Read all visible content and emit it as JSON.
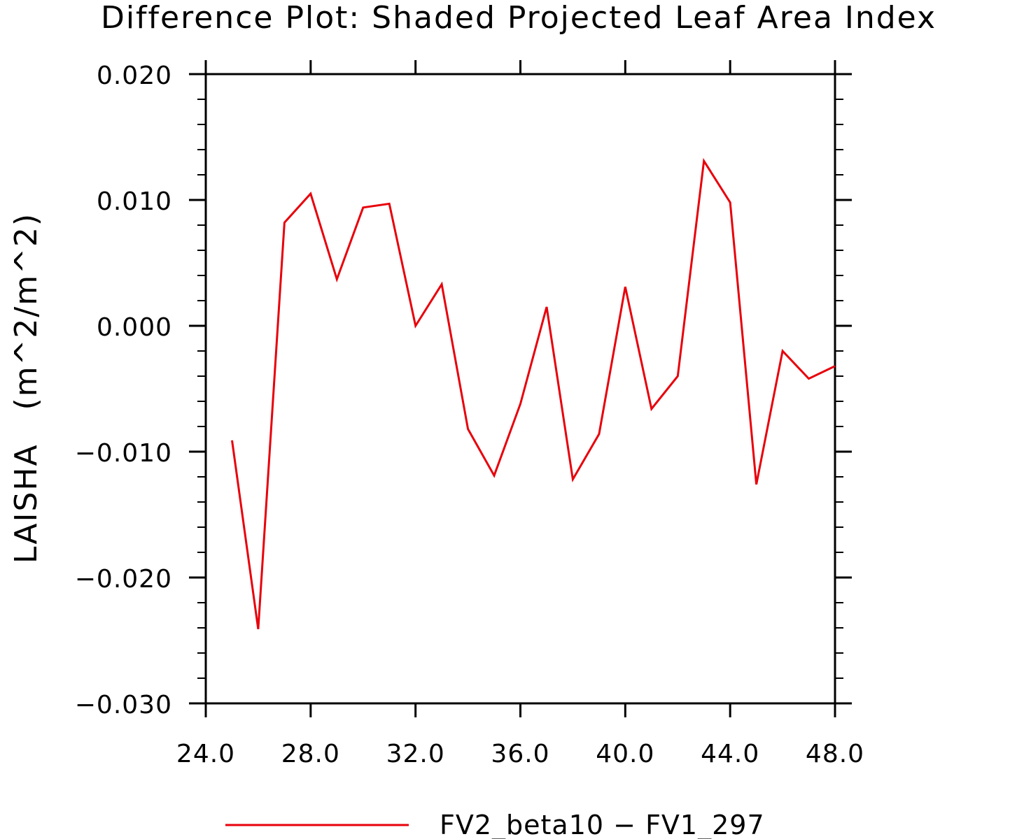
{
  "chart_data": {
    "type": "line",
    "title": "Difference Plot: Shaded Projected Leaf Area Index",
    "ylabel": "LAISHA   (m^2/m^2)",
    "xlabel": "",
    "xlim": [
      24,
      48
    ],
    "ylim": [
      -0.03,
      0.02
    ],
    "xticks": [
      24,
      28,
      32,
      36,
      40,
      44,
      48
    ],
    "xtick_labels": [
      "24.0",
      "28.0",
      "32.0",
      "36.0",
      "40.0",
      "44.0",
      "48.0"
    ],
    "yticks": [
      -0.03,
      -0.02,
      -0.01,
      0.0,
      0.01,
      0.02
    ],
    "ytick_labels": [
      "−0.030",
      "−0.020",
      "−0.010",
      "0.000",
      "0.010",
      "0.020"
    ],
    "grid": false,
    "legend": "bottom-center",
    "series": [
      {
        "name": "FV2_beta10 − FV1_297",
        "color": "#e8000b",
        "x": [
          25,
          26,
          27,
          28,
          29,
          30,
          31,
          32,
          33,
          34,
          35,
          36,
          37,
          38,
          39,
          40,
          41,
          42,
          43,
          44,
          45,
          46,
          47,
          48
        ],
        "y": [
          -0.0091,
          -0.0241,
          0.0082,
          0.0105,
          0.0037,
          0.0094,
          0.0097,
          0.0,
          0.0033,
          -0.0082,
          -0.0119,
          -0.0062,
          0.0015,
          -0.0122,
          -0.0086,
          0.0031,
          -0.0066,
          -0.004,
          0.0131,
          0.0098,
          -0.0126,
          -0.002,
          -0.0042,
          -0.0032
        ]
      }
    ]
  }
}
